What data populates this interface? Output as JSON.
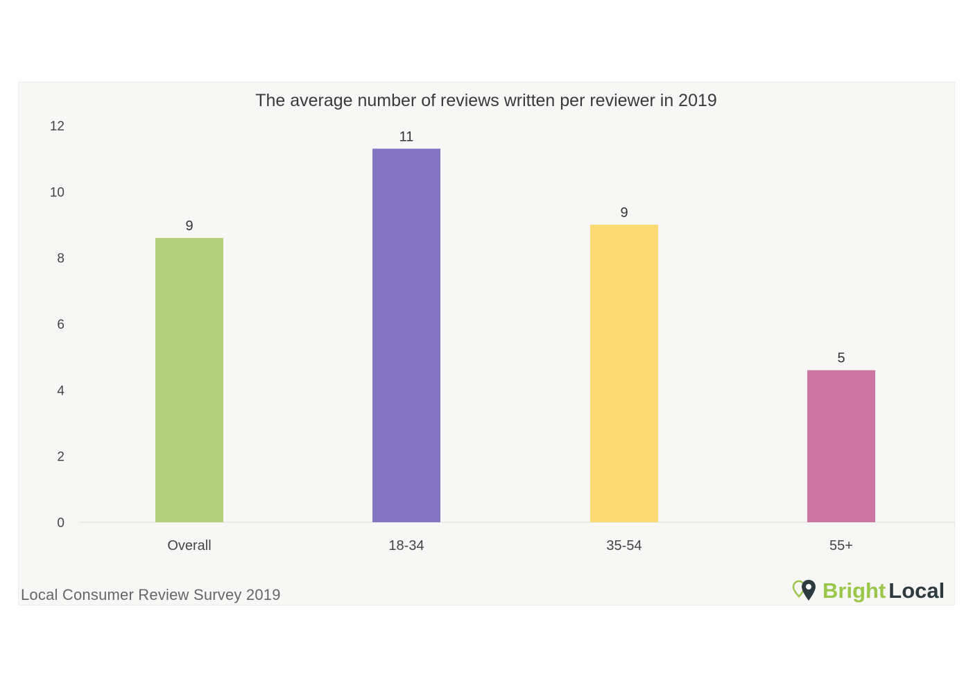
{
  "chart_data": {
    "type": "bar",
    "title": "The average number of reviews written per reviewer in 2019",
    "categories": [
      "Overall",
      "18-34",
      "35-54",
      "55+"
    ],
    "values": [
      8.6,
      11.3,
      9.0,
      4.6
    ],
    "data_labels": [
      "9",
      "11",
      "9",
      "5"
    ],
    "colors": [
      "#b5d07a",
      "#8374c4",
      "#fcdc72",
      "#cb77a2"
    ],
    "yticks": [
      0,
      2,
      4,
      6,
      8,
      10,
      12
    ],
    "ylim": [
      0,
      12
    ],
    "xlabel": "",
    "ylabel": "",
    "grid": false
  },
  "footer": {
    "source": "Local Consumer Review Survey 2019",
    "brand_part1": "Bright",
    "brand_part2": "Local"
  }
}
